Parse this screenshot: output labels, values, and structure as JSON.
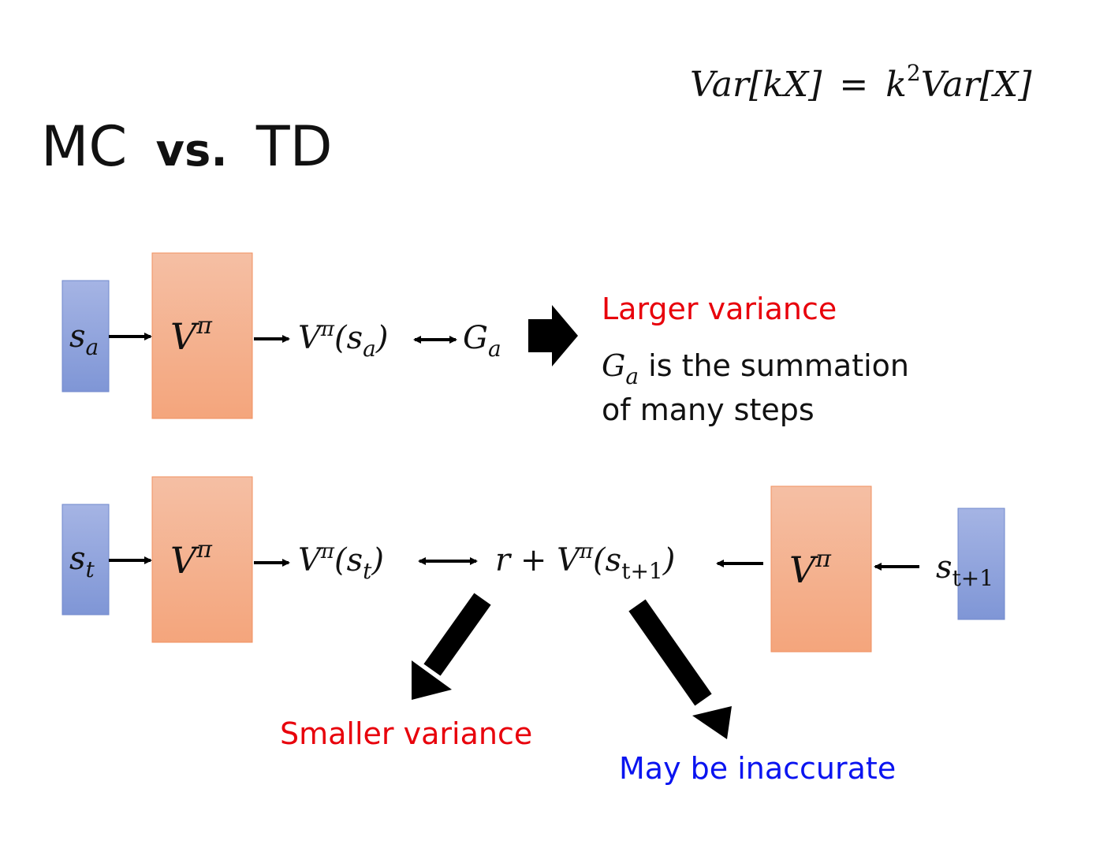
{
  "title": {
    "mc": "MC",
    "vs": "vs.",
    "td": "TD"
  },
  "formula": {
    "lhs": "Var[kX]",
    "eq": "=",
    "k": "k",
    "sq": "2",
    "rhs": "Var[X]"
  },
  "colors": {
    "state_box": "#8ea2dc",
    "value_box": "#f5b394",
    "red_text": "#e8000b",
    "blue_text": "#0a14f0"
  },
  "mc_row": {
    "state": {
      "s": "s",
      "sub": "a"
    },
    "network": {
      "v": "V",
      "sup": "π"
    },
    "output": {
      "v": "V",
      "sup": "π",
      "open": "(s",
      "sub": "a",
      "close": ")"
    },
    "target": {
      "g": "G",
      "sub": "a"
    },
    "note_title": "Larger variance",
    "note_g": "G",
    "note_g_sub": "a",
    "note_line1": " is the summation",
    "note_line2": "of many steps"
  },
  "td_row": {
    "state": {
      "s": "s",
      "sub": "t"
    },
    "network": {
      "v": "V",
      "sup": "π"
    },
    "output": {
      "v": "V",
      "sup": "π",
      "open": "(s",
      "sub": "t",
      "close": ")"
    },
    "target": {
      "r": "r + V",
      "sup": "π",
      "open": "(s",
      "sub": "t+1",
      "close": ")"
    },
    "network2": {
      "v": "V",
      "sup": "π"
    },
    "state2": {
      "s": "s",
      "sub": "t+1"
    },
    "note_left": "Smaller variance",
    "note_right": "May be inaccurate"
  }
}
